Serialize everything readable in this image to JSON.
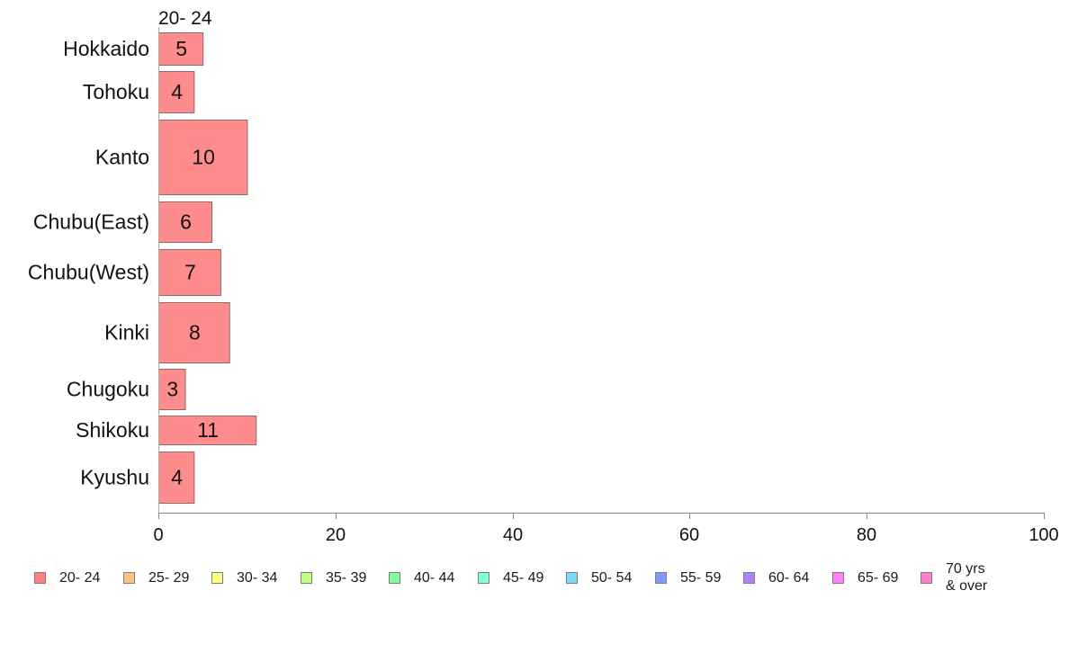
{
  "chart_data": {
    "type": "bar",
    "orientation": "horizontal",
    "title": "20- 24",
    "categories": [
      "Hokkaido",
      "Tohoku",
      "Kanto",
      "Chubu(East)",
      "Chubu(West)",
      "Kinki",
      "Chugoku",
      "Shikoku",
      "Kyushu"
    ],
    "series": [
      {
        "name": "20- 24",
        "values": [
          5,
          4,
          10,
          6,
          7,
          8,
          3,
          11,
          4
        ],
        "color": "#ff8c8c"
      }
    ],
    "xlim": [
      0,
      100
    ],
    "x_ticks": [
      "0",
      "20",
      "40",
      "60",
      "80",
      "100"
    ],
    "grid": false,
    "legend_position": "bottom",
    "legend": [
      {
        "label": "20- 24",
        "color": "#ff8080"
      },
      {
        "label": "25- 29",
        "color": "#ffc080"
      },
      {
        "label": "30- 34",
        "color": "#ffff80"
      },
      {
        "label": "35- 39",
        "color": "#c0ff80"
      },
      {
        "label": "40- 44",
        "color": "#80ff98"
      },
      {
        "label": "45- 49",
        "color": "#80ffd8"
      },
      {
        "label": "50- 54",
        "color": "#80d8ff"
      },
      {
        "label": "55- 59",
        "color": "#8098ff"
      },
      {
        "label": "60- 64",
        "color": "#b080ff"
      },
      {
        "label": "65- 69",
        "color": "#ff80ff"
      },
      {
        "label": "70 yrs\n& over",
        "color": "#ff80c8"
      }
    ]
  }
}
